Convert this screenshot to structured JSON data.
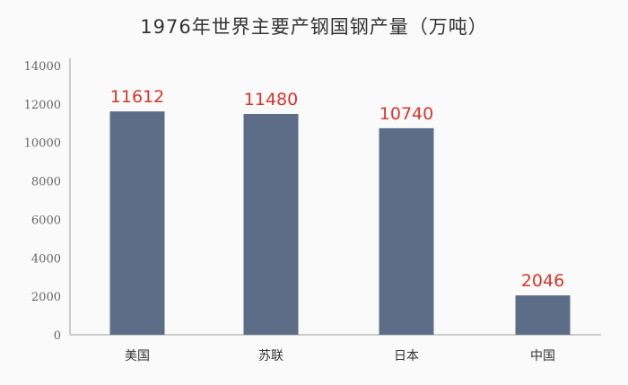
{
  "chart_data": {
    "type": "bar",
    "title": "1976年世界主要产钢国钢产量（万吨）",
    "categories": [
      "美国",
      "苏联",
      "日本",
      "中国"
    ],
    "values": [
      11612,
      11480,
      10740,
      2046
    ],
    "ylim": [
      0,
      14000
    ],
    "yticks": [
      0,
      2000,
      4000,
      6000,
      8000,
      10000,
      12000,
      14000
    ],
    "xlabel": "",
    "ylabel": "",
    "grid": false,
    "bar_color": "#5d6d87",
    "label_color": "#d9352b"
  }
}
